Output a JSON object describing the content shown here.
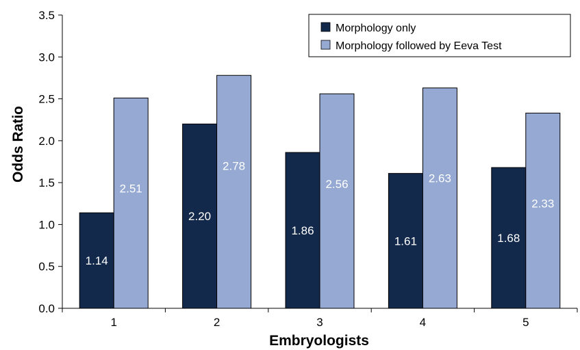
{
  "chart_data": {
    "type": "bar",
    "title": "",
    "xlabel": "Embryologists",
    "ylabel": "Odds Ratio",
    "categories": [
      "1",
      "2",
      "3",
      "4",
      "5"
    ],
    "series": [
      {
        "name": "Morphology only",
        "values": [
          1.14,
          2.2,
          1.86,
          1.61,
          1.68
        ],
        "labels": [
          "1.14",
          "2.20",
          "1.86",
          "1.61",
          "1.68"
        ],
        "color": "#13294b"
      },
      {
        "name": "Morphology followed by Eeva Test",
        "values": [
          2.51,
          2.78,
          2.56,
          2.63,
          2.33
        ],
        "labels": [
          "2.51",
          "2.78",
          "2.56",
          "2.63",
          "2.33"
        ],
        "color": "#95a9d3"
      }
    ],
    "ylim": [
      0,
      3.5
    ],
    "yticks": [
      "0.0",
      "0.5",
      "1.0",
      "1.5",
      "2.0",
      "2.5",
      "3.0",
      "3.5"
    ],
    "grid": false,
    "legend_position": "top-right"
  }
}
